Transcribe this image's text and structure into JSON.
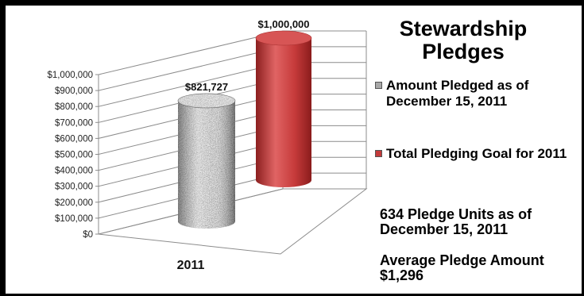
{
  "chart_data": {
    "type": "bar",
    "style": "3d-cylinder",
    "title": "Stewardship Pledges",
    "categories": [
      "2011"
    ],
    "series": [
      {
        "name": "Amount Pledged as of December 15, 2011",
        "values": [
          821727
        ],
        "data_label": "$821,727",
        "color": "#9a9a9a",
        "pattern": "granite"
      },
      {
        "name": "Total Pledging Goal for 2011",
        "values": [
          1000000
        ],
        "data_label": "$1,000,000",
        "color": "#c33a3a"
      }
    ],
    "ylim": [
      0,
      1000000
    ],
    "yticks": [
      0,
      100000,
      200000,
      300000,
      400000,
      500000,
      600000,
      700000,
      800000,
      900000,
      1000000
    ],
    "ytick_labels": [
      "$0",
      "$100,000",
      "$200,000",
      "$300,000",
      "$400,000",
      "$500,000",
      "$600,000",
      "$700,000",
      "$800,000",
      "$900,000",
      "$1,000,000"
    ],
    "xlabel": "",
    "ylabel": "",
    "grid": true,
    "legend": "right"
  },
  "notes": {
    "units": "634 Pledge Units as of December 15, 2011",
    "average": "Average Pledge Amount $1,296"
  }
}
